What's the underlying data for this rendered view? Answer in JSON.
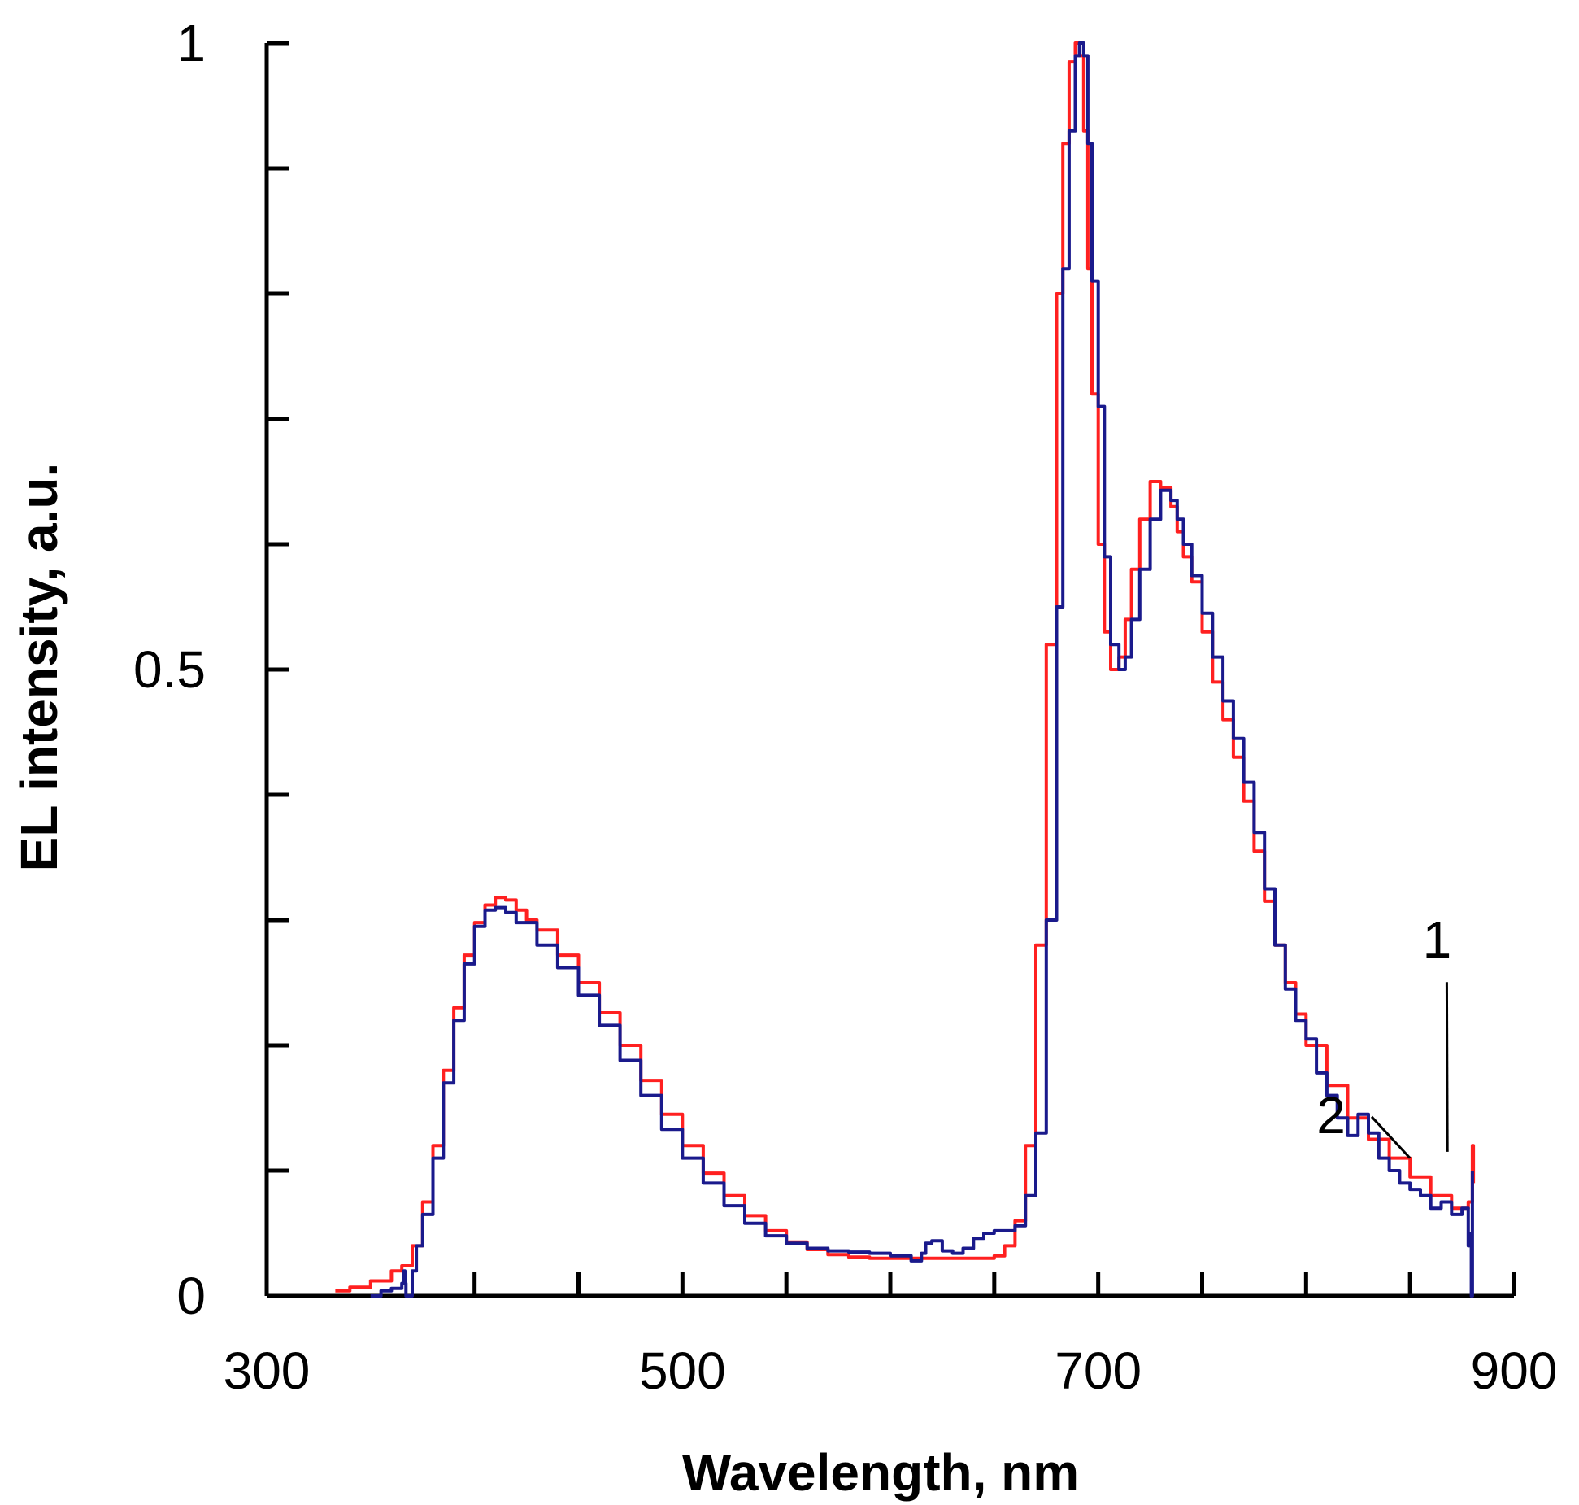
{
  "chart_data": {
    "type": "line",
    "title": "",
    "xlabel": "Wavelength, nm",
    "ylabel": "EL intensity, a.u.",
    "xlim": [
      300,
      900
    ],
    "ylim": [
      0,
      1
    ],
    "x_ticks": [
      300,
      500,
      700,
      900
    ],
    "x_tick_labels": [
      "300",
      "500",
      "700",
      "900"
    ],
    "x_minor_ticks": [
      400,
      450,
      550,
      600,
      650,
      750,
      800,
      850
    ],
    "y_ticks": [
      0,
      0.5,
      1
    ],
    "y_tick_labels": [
      "0",
      "0.5",
      "1"
    ],
    "y_minor_ticks": [
      0.1,
      0.2,
      0.3,
      0.4,
      0.6,
      0.7,
      0.8,
      0.9
    ],
    "grid": false,
    "colors": {
      "series1": "#ff2020",
      "series2": "#1a1a8c",
      "axis": "#000000"
    },
    "series": [
      {
        "name": "1",
        "x": [
          333,
          340,
          350,
          360,
          365,
          370,
          375,
          380,
          385,
          390,
          395,
          400,
          405,
          410,
          415,
          420,
          425,
          430,
          440,
          450,
          460,
          470,
          480,
          490,
          500,
          510,
          520,
          530,
          540,
          550,
          560,
          570,
          580,
          590,
          600,
          610,
          620,
          630,
          640,
          650,
          655,
          660,
          665,
          670,
          675,
          680,
          683,
          686,
          689,
          691,
          693,
          695,
          697,
          700,
          703,
          706,
          710,
          713,
          716,
          720,
          725,
          730,
          735,
          738,
          741,
          745,
          750,
          755,
          760,
          765,
          770,
          775,
          780,
          785,
          790,
          795,
          800,
          810,
          820,
          830,
          840,
          850,
          860,
          870,
          875,
          878,
          880,
          880.5
        ],
        "y": [
          0.004,
          0.007,
          0.012,
          0.02,
          0.024,
          0.04,
          0.075,
          0.12,
          0.18,
          0.23,
          0.272,
          0.298,
          0.312,
          0.318,
          0.316,
          0.308,
          0.3,
          0.292,
          0.272,
          0.25,
          0.226,
          0.2,
          0.172,
          0.145,
          0.12,
          0.098,
          0.08,
          0.064,
          0.052,
          0.043,
          0.037,
          0.033,
          0.031,
          0.03,
          0.03,
          0.03,
          0.03,
          0.03,
          0.03,
          0.032,
          0.04,
          0.06,
          0.12,
          0.28,
          0.52,
          0.8,
          0.92,
          0.985,
          1.0,
          0.99,
          0.93,
          0.82,
          0.72,
          0.6,
          0.53,
          0.5,
          0.51,
          0.54,
          0.58,
          0.62,
          0.65,
          0.645,
          0.63,
          0.61,
          0.59,
          0.57,
          0.53,
          0.49,
          0.46,
          0.43,
          0.395,
          0.355,
          0.315,
          0.28,
          0.25,
          0.225,
          0.2,
          0.168,
          0.142,
          0.125,
          0.11,
          0.095,
          0.08,
          0.07,
          0.07,
          0.075,
          0.12,
          0.09
        ]
      },
      {
        "name": "2",
        "x": [
          350,
          355,
          360,
          365,
          366,
          366.5,
          367,
          370,
          372,
          375,
          380,
          385,
          390,
          395,
          400,
          405,
          410,
          415,
          420,
          430,
          440,
          450,
          460,
          470,
          480,
          490,
          500,
          510,
          520,
          530,
          540,
          550,
          560,
          570,
          580,
          590,
          600,
          610,
          613,
          615,
          617,
          620,
          625,
          630,
          635,
          640,
          645,
          650,
          655,
          660,
          665,
          670,
          675,
          680,
          683,
          686,
          689,
          691,
          693,
          695,
          697,
          700,
          703,
          706,
          710,
          713,
          716,
          720,
          725,
          730,
          735,
          738,
          741,
          745,
          750,
          755,
          760,
          765,
          770,
          775,
          780,
          785,
          790,
          795,
          800,
          805,
          810,
          815,
          820,
          825,
          830,
          835,
          840,
          845,
          850,
          855,
          860,
          865,
          870,
          875,
          878,
          879,
          879.5,
          880
        ],
        "y": [
          0.0,
          0.004,
          0.006,
          0.01,
          0.02,
          0.01,
          0.0,
          0.02,
          0.04,
          0.065,
          0.11,
          0.17,
          0.22,
          0.265,
          0.295,
          0.308,
          0.31,
          0.306,
          0.298,
          0.28,
          0.262,
          0.24,
          0.216,
          0.188,
          0.16,
          0.133,
          0.11,
          0.09,
          0.072,
          0.058,
          0.048,
          0.042,
          0.038,
          0.036,
          0.035,
          0.034,
          0.032,
          0.028,
          0.028,
          0.034,
          0.042,
          0.044,
          0.036,
          0.034,
          0.038,
          0.046,
          0.05,
          0.052,
          0.052,
          0.056,
          0.08,
          0.13,
          0.3,
          0.55,
          0.82,
          0.93,
          0.99,
          1.0,
          0.99,
          0.92,
          0.81,
          0.71,
          0.59,
          0.52,
          0.5,
          0.51,
          0.54,
          0.58,
          0.62,
          0.643,
          0.635,
          0.62,
          0.6,
          0.575,
          0.545,
          0.51,
          0.475,
          0.445,
          0.41,
          0.37,
          0.325,
          0.28,
          0.245,
          0.22,
          0.205,
          0.178,
          0.16,
          0.142,
          0.128,
          0.145,
          0.13,
          0.11,
          0.1,
          0.09,
          0.085,
          0.08,
          0.07,
          0.075,
          0.065,
          0.07,
          0.04,
          0.05,
          0.0,
          0.1
        ]
      }
    ],
    "annotations": [
      {
        "text": "1",
        "label_x": 863,
        "label_y": 0.27,
        "target_x": 868,
        "target_y": 0.115
      },
      {
        "text": "2",
        "label_x": 812,
        "label_y": 0.13,
        "target_x": 850,
        "target_y": 0.11
      }
    ]
  }
}
